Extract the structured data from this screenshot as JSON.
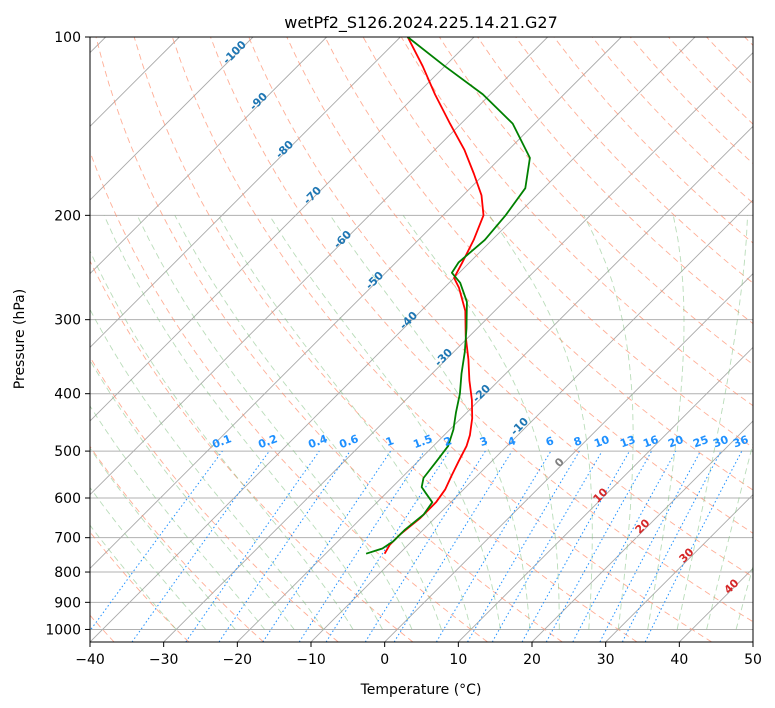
{
  "chart_data": {
    "type": "line",
    "subtype": "skew-t log-p diagram",
    "title": "wetPf2_S126.2024.225.14.21.G27",
    "xlabel": "Temperature (°C)",
    "ylabel": "Pressure (hPa)",
    "xlim": [
      -40,
      50
    ],
    "ylim": [
      1050,
      100
    ],
    "y_scale": "log",
    "grid": true,
    "x_ticks": [
      -40,
      -30,
      -20,
      -10,
      0,
      10,
      20,
      30,
      40,
      50
    ],
    "y_ticks": [
      100,
      200,
      300,
      400,
      500,
      600,
      700,
      800,
      900,
      1000
    ],
    "series": [
      {
        "role": "temperature",
        "color": "#ff0000",
        "points": [
          {
            "p": 745,
            "t": -12.0
          },
          {
            "p": 720,
            "t": -12.5
          },
          {
            "p": 690,
            "t": -12.5
          },
          {
            "p": 650,
            "t": -12.0
          },
          {
            "p": 610,
            "t": -12.0
          },
          {
            "p": 580,
            "t": -12.5
          },
          {
            "p": 550,
            "t": -13.5
          },
          {
            "p": 520,
            "t": -14.5
          },
          {
            "p": 490,
            "t": -15.5
          },
          {
            "p": 470,
            "t": -16.5
          },
          {
            "p": 440,
            "t": -18.5
          },
          {
            "p": 410,
            "t": -21.0
          },
          {
            "p": 380,
            "t": -24.0
          },
          {
            "p": 350,
            "t": -27.0
          },
          {
            "p": 320,
            "t": -30.5
          },
          {
            "p": 290,
            "t": -34.0
          },
          {
            "p": 265,
            "t": -38.0
          },
          {
            "p": 255,
            "t": -40.0
          },
          {
            "p": 240,
            "t": -41.0
          },
          {
            "p": 220,
            "t": -42.5
          },
          {
            "p": 200,
            "t": -44.5
          },
          {
            "p": 185,
            "t": -47.5
          },
          {
            "p": 170,
            "t": -51.5
          },
          {
            "p": 155,
            "t": -56.0
          },
          {
            "p": 140,
            "t": -61.5
          },
          {
            "p": 125,
            "t": -67.5
          },
          {
            "p": 112,
            "t": -73.0
          },
          {
            "p": 100,
            "t": -79.0
          }
        ]
      },
      {
        "role": "dewpoint",
        "color": "#008000",
        "points": [
          {
            "p": 745,
            "t": -14.5
          },
          {
            "p": 730,
            "t": -13.0
          },
          {
            "p": 710,
            "t": -12.5
          },
          {
            "p": 680,
            "t": -12.5
          },
          {
            "p": 640,
            "t": -12.0
          },
          {
            "p": 610,
            "t": -12.5
          },
          {
            "p": 590,
            "t": -14.5
          },
          {
            "p": 575,
            "t": -16.0
          },
          {
            "p": 555,
            "t": -17.0
          },
          {
            "p": 520,
            "t": -17.5
          },
          {
            "p": 490,
            "t": -18.0
          },
          {
            "p": 460,
            "t": -19.5
          },
          {
            "p": 430,
            "t": -21.5
          },
          {
            "p": 400,
            "t": -23.5
          },
          {
            "p": 370,
            "t": -26.0
          },
          {
            "p": 340,
            "t": -28.5
          },
          {
            "p": 310,
            "t": -31.5
          },
          {
            "p": 280,
            "t": -35.0
          },
          {
            "p": 260,
            "t": -38.5
          },
          {
            "p": 250,
            "t": -41.0
          },
          {
            "p": 240,
            "t": -41.5
          },
          {
            "p": 220,
            "t": -41.0
          },
          {
            "p": 200,
            "t": -41.5
          },
          {
            "p": 180,
            "t": -42.5
          },
          {
            "p": 160,
            "t": -46.0
          },
          {
            "p": 140,
            "t": -53.0
          },
          {
            "p": 125,
            "t": -61.0
          },
          {
            "p": 112,
            "t": -70.0
          },
          {
            "p": 100,
            "t": -79.0
          }
        ]
      }
    ],
    "isotherm_labels": [
      "-100",
      "-90",
      "-80",
      "-70",
      "-60",
      "-50",
      "-40",
      "-30",
      "-20",
      "-10"
    ],
    "mixing_ratio_labels": [
      "0.1",
      "0.2",
      "0.4",
      "0.6",
      "1",
      "1.5",
      "2",
      "3",
      "4",
      "6",
      "8",
      "10",
      "13",
      "16",
      "20",
      "25",
      "30",
      "36"
    ],
    "moist_adiabat_labels": [
      "0",
      "10",
      "20",
      "30",
      "40"
    ],
    "colors": {
      "isotherm_label": "#1f77b4",
      "mixing_ratio": "#1e90ff",
      "dry_adiabat": "#ff8c69",
      "moist_adiabat": "#7fbf7f",
      "moist_label_zero": "#808080",
      "moist_label_warm": "#d62728"
    }
  }
}
